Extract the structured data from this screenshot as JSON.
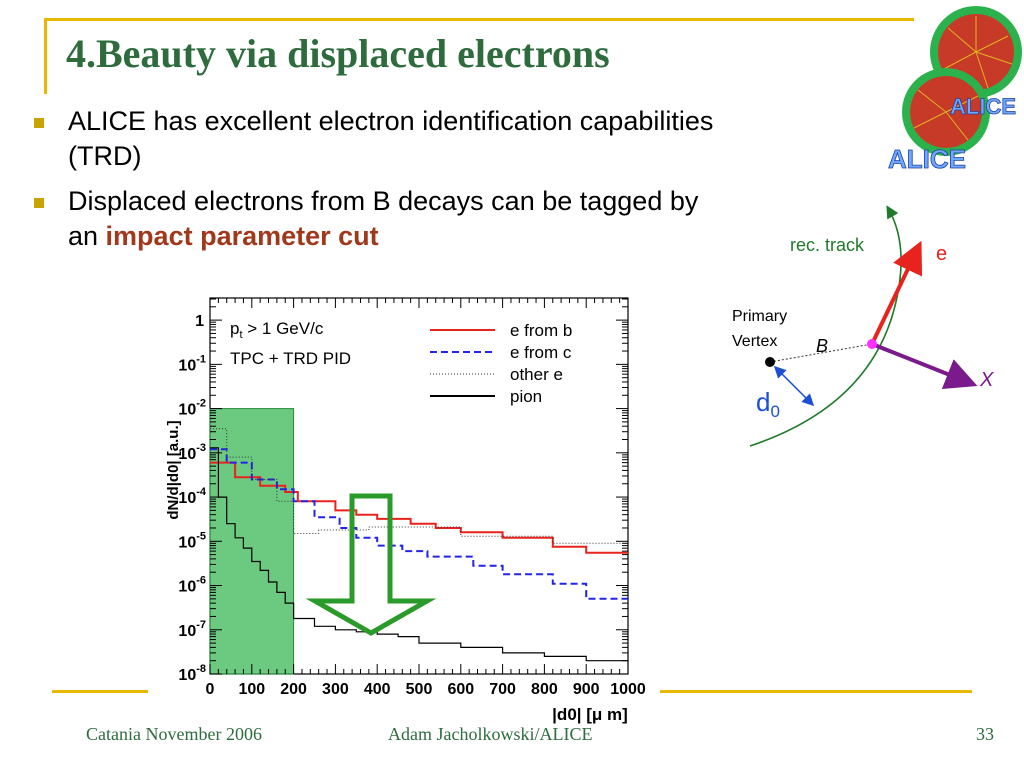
{
  "slide": {
    "title": "4.Beauty via displaced electrons",
    "bullets": [
      {
        "text_parts": [
          "ALICE has excellent electron identification capabilities (TRD)"
        ]
      },
      {
        "text_parts": [
          "Displaced electrons from B decays can be tagged by an ",
          "impact parameter cut"
        ]
      }
    ],
    "highlight_color": "#a0391b",
    "title_color": "#2e6b3d",
    "accent_color": "#e8b800",
    "logo_text": "ALICE"
  },
  "diagram": {
    "track_label": "rec. track",
    "e_label": "e",
    "vertex_label_line1": "Primary",
    "vertex_label_line2": "Vertex",
    "b_label": "B",
    "x_label": "X",
    "d0_label": "d",
    "d0_sub": "0"
  },
  "footer": {
    "left": "Catania November 2006",
    "center": "Adam Jacholkowski/ALICE",
    "page": "33"
  },
  "chart_data": {
    "type": "line",
    "title": "",
    "xlabel": "|d0| [μ m]",
    "ylabel": "dN/d|d0| [a.u.]",
    "xlim": [
      0,
      1000
    ],
    "ylim_log10": [
      -8,
      0.5
    ],
    "log_y": true,
    "x_ticks": [
      "0",
      "100",
      "200",
      "300",
      "400",
      "500",
      "600",
      "700",
      "800",
      "900",
      "1000"
    ],
    "y_ticks": [
      "1",
      "10-1",
      "10-2",
      "10-3",
      "10-4",
      "10-5",
      "10-6",
      "10-7",
      "10-8"
    ],
    "legend_position": "top-right",
    "annotations": [
      "pt > 1 GeV/c",
      "TPC + TRD  PID"
    ],
    "cut_region": [
      0,
      200
    ],
    "series": [
      {
        "name": "e from b",
        "color": "#e8221c",
        "style": "solid",
        "edges": [
          0,
          60,
          120,
          180,
          210,
          300,
          350,
          400,
          480,
          540,
          600,
          700,
          820,
          900,
          1000
        ],
        "values": [
          0.0006,
          0.00028,
          0.00018,
          0.00013,
          8e-05,
          5e-05,
          4e-05,
          3.2e-05,
          2.5e-05,
          2e-05,
          1.6e-05,
          1.2e-05,
          7.5e-06,
          5.5e-06
        ]
      },
      {
        "name": "e from c",
        "color": "#2424e8",
        "style": "dashed",
        "edges": [
          0,
          40,
          100,
          160,
          200,
          250,
          310,
          350,
          400,
          460,
          520,
          630,
          700,
          820,
          900,
          1000
        ],
        "values": [
          0.0012,
          0.0006,
          0.00025,
          0.00015,
          8e-05,
          3.5e-05,
          2e-05,
          1.2e-05,
          8e-06,
          6e-06,
          4.5e-06,
          2.8e-06,
          1.8e-06,
          1.1e-06,
          5e-07
        ]
      },
      {
        "name": "other e",
        "color": "#333333",
        "style": "dotted",
        "edges": [
          0,
          40,
          100,
          160,
          200,
          260,
          380,
          600,
          820,
          1000
        ],
        "values": [
          0.0035,
          0.0008,
          0.00025,
          8e-05,
          1.5e-05,
          1.8e-05,
          2.1e-05,
          1.3e-05,
          9e-06
        ]
      },
      {
        "name": "pion",
        "color": "#000000",
        "style": "solid",
        "edges": [
          0,
          20,
          40,
          60,
          80,
          100,
          120,
          140,
          160,
          180,
          200,
          250,
          300,
          350,
          400,
          450,
          500,
          600,
          700,
          800,
          900,
          1000
        ],
        "values": [
          0.0013,
          0.0001,
          2.5e-05,
          1.2e-05,
          7e-06,
          3.5e-06,
          2.2e-06,
          1.2e-06,
          7e-07,
          4e-07,
          1.8e-07,
          1.2e-07,
          1e-07,
          9e-08,
          8e-08,
          7e-08,
          5e-08,
          4e-08,
          3e-08,
          2.5e-08,
          2e-08
        ]
      }
    ]
  }
}
